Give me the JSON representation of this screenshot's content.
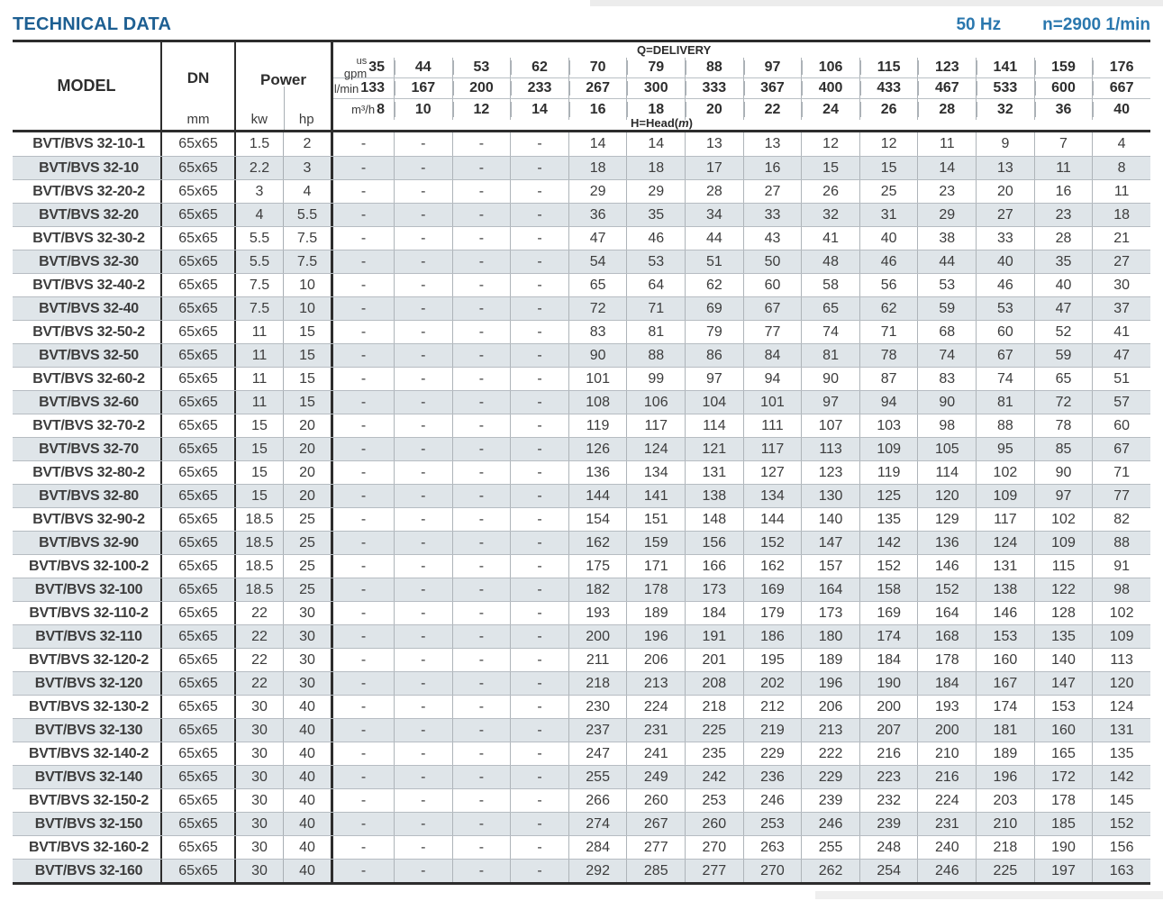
{
  "page": {
    "title": "TECHNICAL DATA",
    "frequency": "50 Hz",
    "speed": "n=2900 1/min"
  },
  "table": {
    "headers": {
      "model": "MODEL",
      "dn": "DN",
      "dn_unit": "mm",
      "power": "Power",
      "power_unit_kw": "kw",
      "power_unit_hp": "hp",
      "delivery_label": "Q=DELIVERY",
      "head_label_pre": "H=Head(",
      "head_label_m": "m",
      "head_label_post": ")"
    },
    "unit_rows": [
      {
        "unit_top": "us",
        "unit": "gpm",
        "values": [
          "35",
          "44",
          "53",
          "62",
          "70",
          "79",
          "88",
          "97",
          "106",
          "115",
          "123",
          "141",
          "159",
          "176"
        ]
      },
      {
        "unit_top": "",
        "unit": "l/min",
        "values": [
          "133",
          "167",
          "200",
          "233",
          "267",
          "300",
          "333",
          "367",
          "400",
          "433",
          "467",
          "533",
          "600",
          "667"
        ]
      },
      {
        "unit_top": "",
        "unit": "m³/h",
        "values": [
          "8",
          "10",
          "12",
          "14",
          "16",
          "18",
          "20",
          "22",
          "24",
          "26",
          "28",
          "32",
          "36",
          "40"
        ]
      }
    ],
    "rows": [
      {
        "model": "BVT/BVS 32-10-1",
        "dn": "65x65",
        "kw": "1.5",
        "hp": "2",
        "heads": [
          "-",
          "-",
          "-",
          "-",
          "14",
          "14",
          "13",
          "13",
          "12",
          "12",
          "11",
          "9",
          "7",
          "4"
        ]
      },
      {
        "model": "BVT/BVS 32-10",
        "dn": "65x65",
        "kw": "2.2",
        "hp": "3",
        "heads": [
          "-",
          "-",
          "-",
          "-",
          "18",
          "18",
          "17",
          "16",
          "15",
          "15",
          "14",
          "13",
          "11",
          "8"
        ]
      },
      {
        "model": "BVT/BVS 32-20-2",
        "dn": "65x65",
        "kw": "3",
        "hp": "4",
        "heads": [
          "-",
          "-",
          "-",
          "-",
          "29",
          "29",
          "28",
          "27",
          "26",
          "25",
          "23",
          "20",
          "16",
          "11"
        ]
      },
      {
        "model": "BVT/BVS 32-20",
        "dn": "65x65",
        "kw": "4",
        "hp": "5.5",
        "heads": [
          "-",
          "-",
          "-",
          "-",
          "36",
          "35",
          "34",
          "33",
          "32",
          "31",
          "29",
          "27",
          "23",
          "18"
        ]
      },
      {
        "model": "BVT/BVS 32-30-2",
        "dn": "65x65",
        "kw": "5.5",
        "hp": "7.5",
        "heads": [
          "-",
          "-",
          "-",
          "-",
          "47",
          "46",
          "44",
          "43",
          "41",
          "40",
          "38",
          "33",
          "28",
          "21"
        ]
      },
      {
        "model": "BVT/BVS 32-30",
        "dn": "65x65",
        "kw": "5.5",
        "hp": "7.5",
        "heads": [
          "-",
          "-",
          "-",
          "-",
          "54",
          "53",
          "51",
          "50",
          "48",
          "46",
          "44",
          "40",
          "35",
          "27"
        ]
      },
      {
        "model": "BVT/BVS 32-40-2",
        "dn": "65x65",
        "kw": "7.5",
        "hp": "10",
        "heads": [
          "-",
          "-",
          "-",
          "-",
          "65",
          "64",
          "62",
          "60",
          "58",
          "56",
          "53",
          "46",
          "40",
          "30"
        ]
      },
      {
        "model": "BVT/BVS 32-40",
        "dn": "65x65",
        "kw": "7.5",
        "hp": "10",
        "heads": [
          "-",
          "-",
          "-",
          "-",
          "72",
          "71",
          "69",
          "67",
          "65",
          "62",
          "59",
          "53",
          "47",
          "37"
        ]
      },
      {
        "model": "BVT/BVS 32-50-2",
        "dn": "65x65",
        "kw": "11",
        "hp": "15",
        "heads": [
          "-",
          "-",
          "-",
          "-",
          "83",
          "81",
          "79",
          "77",
          "74",
          "71",
          "68",
          "60",
          "52",
          "41"
        ]
      },
      {
        "model": "BVT/BVS 32-50",
        "dn": "65x65",
        "kw": "11",
        "hp": "15",
        "heads": [
          "-",
          "-",
          "-",
          "-",
          "90",
          "88",
          "86",
          "84",
          "81",
          "78",
          "74",
          "67",
          "59",
          "47"
        ]
      },
      {
        "model": "BVT/BVS 32-60-2",
        "dn": "65x65",
        "kw": "11",
        "hp": "15",
        "heads": [
          "-",
          "-",
          "-",
          "-",
          "101",
          "99",
          "97",
          "94",
          "90",
          "87",
          "83",
          "74",
          "65",
          "51"
        ]
      },
      {
        "model": "BVT/BVS 32-60",
        "dn": "65x65",
        "kw": "11",
        "hp": "15",
        "heads": [
          "-",
          "-",
          "-",
          "-",
          "108",
          "106",
          "104",
          "101",
          "97",
          "94",
          "90",
          "81",
          "72",
          "57"
        ]
      },
      {
        "model": "BVT/BVS 32-70-2",
        "dn": "65x65",
        "kw": "15",
        "hp": "20",
        "heads": [
          "-",
          "-",
          "-",
          "-",
          "119",
          "117",
          "114",
          "111",
          "107",
          "103",
          "98",
          "88",
          "78",
          "60"
        ]
      },
      {
        "model": "BVT/BVS 32-70",
        "dn": "65x65",
        "kw": "15",
        "hp": "20",
        "heads": [
          "-",
          "-",
          "-",
          "-",
          "126",
          "124",
          "121",
          "117",
          "113",
          "109",
          "105",
          "95",
          "85",
          "67"
        ]
      },
      {
        "model": "BVT/BVS 32-80-2",
        "dn": "65x65",
        "kw": "15",
        "hp": "20",
        "heads": [
          "-",
          "-",
          "-",
          "-",
          "136",
          "134",
          "131",
          "127",
          "123",
          "119",
          "114",
          "102",
          "90",
          "71"
        ]
      },
      {
        "model": "BVT/BVS 32-80",
        "dn": "65x65",
        "kw": "15",
        "hp": "20",
        "heads": [
          "-",
          "-",
          "-",
          "-",
          "144",
          "141",
          "138",
          "134",
          "130",
          "125",
          "120",
          "109",
          "97",
          "77"
        ]
      },
      {
        "model": "BVT/BVS 32-90-2",
        "dn": "65x65",
        "kw": "18.5",
        "hp": "25",
        "heads": [
          "-",
          "-",
          "-",
          "-",
          "154",
          "151",
          "148",
          "144",
          "140",
          "135",
          "129",
          "117",
          "102",
          "82"
        ]
      },
      {
        "model": "BVT/BVS 32-90",
        "dn": "65x65",
        "kw": "18.5",
        "hp": "25",
        "heads": [
          "-",
          "-",
          "-",
          "-",
          "162",
          "159",
          "156",
          "152",
          "147",
          "142",
          "136",
          "124",
          "109",
          "88"
        ]
      },
      {
        "model": "BVT/BVS 32-100-2",
        "dn": "65x65",
        "kw": "18.5",
        "hp": "25",
        "heads": [
          "-",
          "-",
          "-",
          "-",
          "175",
          "171",
          "166",
          "162",
          "157",
          "152",
          "146",
          "131",
          "115",
          "91"
        ]
      },
      {
        "model": "BVT/BVS 32-100",
        "dn": "65x65",
        "kw": "18.5",
        "hp": "25",
        "heads": [
          "-",
          "-",
          "-",
          "-",
          "182",
          "178",
          "173",
          "169",
          "164",
          "158",
          "152",
          "138",
          "122",
          "98"
        ]
      },
      {
        "model": "BVT/BVS 32-110-2",
        "dn": "65x65",
        "kw": "22",
        "hp": "30",
        "heads": [
          "-",
          "-",
          "-",
          "-",
          "193",
          "189",
          "184",
          "179",
          "173",
          "169",
          "164",
          "146",
          "128",
          "102"
        ]
      },
      {
        "model": "BVT/BVS 32-110",
        "dn": "65x65",
        "kw": "22",
        "hp": "30",
        "heads": [
          "-",
          "-",
          "-",
          "-",
          "200",
          "196",
          "191",
          "186",
          "180",
          "174",
          "168",
          "153",
          "135",
          "109"
        ]
      },
      {
        "model": "BVT/BVS 32-120-2",
        "dn": "65x65",
        "kw": "22",
        "hp": "30",
        "heads": [
          "-",
          "-",
          "-",
          "-",
          "211",
          "206",
          "201",
          "195",
          "189",
          "184",
          "178",
          "160",
          "140",
          "113"
        ]
      },
      {
        "model": "BVT/BVS 32-120",
        "dn": "65x65",
        "kw": "22",
        "hp": "30",
        "heads": [
          "-",
          "-",
          "-",
          "-",
          "218",
          "213",
          "208",
          "202",
          "196",
          "190",
          "184",
          "167",
          "147",
          "120"
        ]
      },
      {
        "model": "BVT/BVS 32-130-2",
        "dn": "65x65",
        "kw": "30",
        "hp": "40",
        "heads": [
          "-",
          "-",
          "-",
          "-",
          "230",
          "224",
          "218",
          "212",
          "206",
          "200",
          "193",
          "174",
          "153",
          "124"
        ]
      },
      {
        "model": "BVT/BVS 32-130",
        "dn": "65x65",
        "kw": "30",
        "hp": "40",
        "heads": [
          "-",
          "-",
          "-",
          "-",
          "237",
          "231",
          "225",
          "219",
          "213",
          "207",
          "200",
          "181",
          "160",
          "131"
        ]
      },
      {
        "model": "BVT/BVS 32-140-2",
        "dn": "65x65",
        "kw": "30",
        "hp": "40",
        "heads": [
          "-",
          "-",
          "-",
          "-",
          "247",
          "241",
          "235",
          "229",
          "222",
          "216",
          "210",
          "189",
          "165",
          "135"
        ]
      },
      {
        "model": "BVT/BVS 32-140",
        "dn": "65x65",
        "kw": "30",
        "hp": "40",
        "heads": [
          "-",
          "-",
          "-",
          "-",
          "255",
          "249",
          "242",
          "236",
          "229",
          "223",
          "216",
          "196",
          "172",
          "142"
        ]
      },
      {
        "model": "BVT/BVS 32-150-2",
        "dn": "65x65",
        "kw": "30",
        "hp": "40",
        "heads": [
          "-",
          "-",
          "-",
          "-",
          "266",
          "260",
          "253",
          "246",
          "239",
          "232",
          "224",
          "203",
          "178",
          "145"
        ]
      },
      {
        "model": "BVT/BVS 32-150",
        "dn": "65x65",
        "kw": "30",
        "hp": "40",
        "heads": [
          "-",
          "-",
          "-",
          "-",
          "274",
          "267",
          "260",
          "253",
          "246",
          "239",
          "231",
          "210",
          "185",
          "152"
        ]
      },
      {
        "model": "BVT/BVS 32-160-2",
        "dn": "65x65",
        "kw": "30",
        "hp": "40",
        "heads": [
          "-",
          "-",
          "-",
          "-",
          "284",
          "277",
          "270",
          "263",
          "255",
          "248",
          "240",
          "218",
          "190",
          "156"
        ]
      },
      {
        "model": "BVT/BVS 32-160",
        "dn": "65x65",
        "kw": "30",
        "hp": "40",
        "heads": [
          "-",
          "-",
          "-",
          "-",
          "292",
          "285",
          "277",
          "270",
          "262",
          "254",
          "246",
          "225",
          "197",
          "163"
        ]
      }
    ]
  }
}
